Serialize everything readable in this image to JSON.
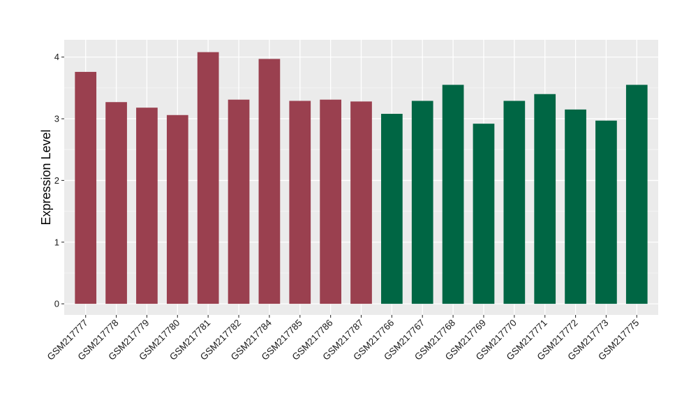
{
  "chart_data": {
    "type": "bar",
    "title": "",
    "xlabel": "",
    "ylabel": "Expression Level",
    "ylim": [
      -0.18,
      4.28
    ],
    "yticks": [
      0,
      1,
      2,
      3,
      4
    ],
    "grid": true,
    "legend": "none",
    "categories": [
      "GSM217777",
      "GSM217778",
      "GSM217779",
      "GSM217780",
      "GSM217781",
      "GSM217782",
      "GSM217784",
      "GSM217785",
      "GSM217786",
      "GSM217787",
      "GSM217766",
      "GSM217767",
      "GSM217768",
      "GSM217769",
      "GSM217770",
      "GSM217771",
      "GSM217772",
      "GSM217773",
      "GSM217775"
    ],
    "values": [
      3.76,
      3.27,
      3.18,
      3.06,
      4.08,
      3.31,
      3.97,
      3.29,
      3.31,
      3.28,
      3.08,
      3.29,
      3.55,
      2.92,
      3.29,
      3.4,
      3.15,
      2.97,
      3.55
    ],
    "series": [
      {
        "values_index_range": [
          0,
          9
        ],
        "color": "#9a404f"
      },
      {
        "values_index_range": [
          10,
          18
        ],
        "color": "#006644"
      }
    ],
    "colors": {
      "panel_background": "#ebebeb",
      "grid_major": "#ffffff",
      "grid_minor": "#f5f5f5",
      "tick": "#333333",
      "group_a": "#9a404f",
      "group_b": "#006644"
    }
  }
}
